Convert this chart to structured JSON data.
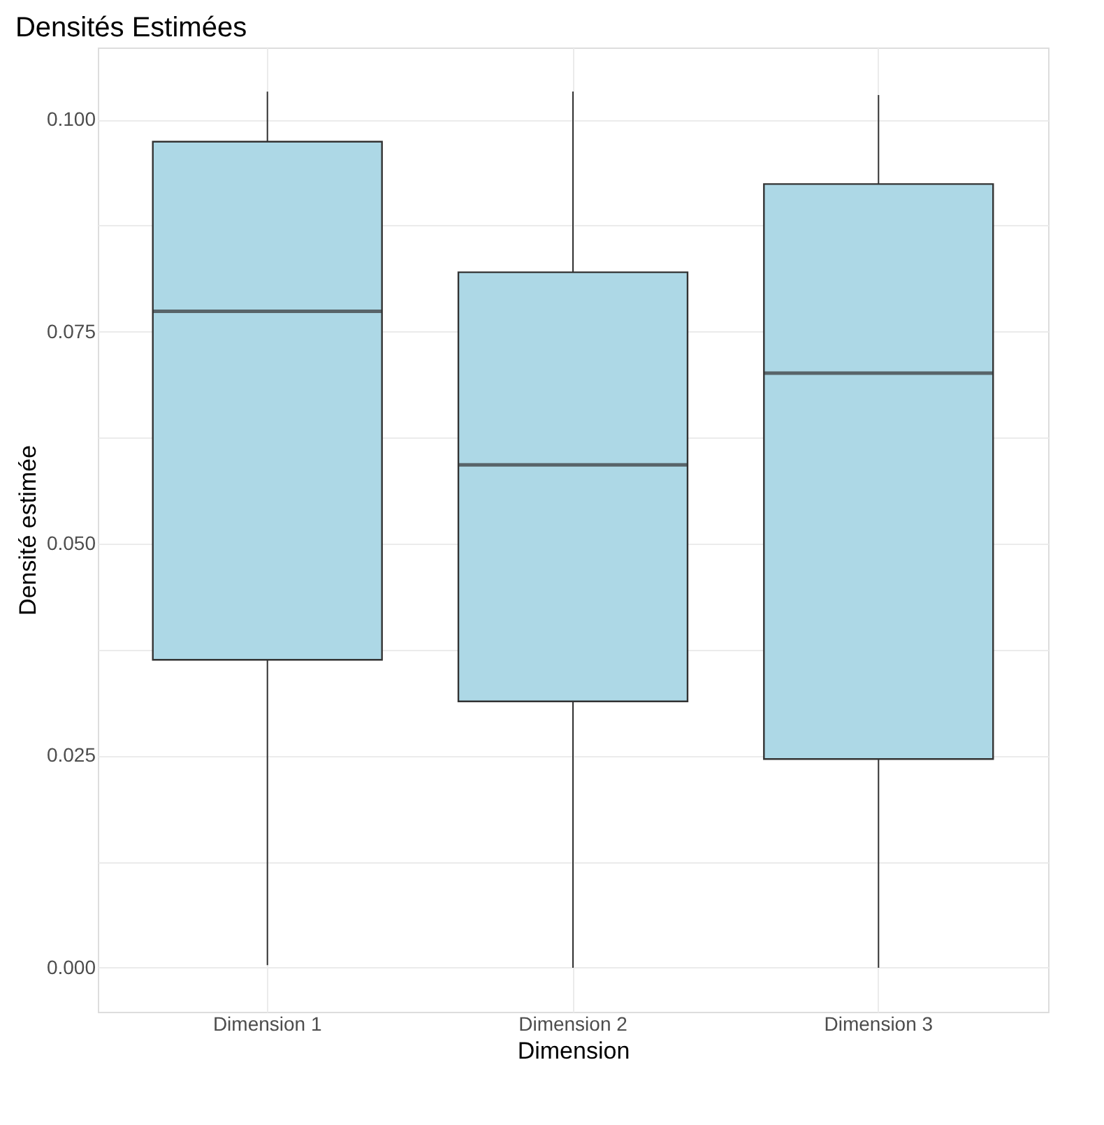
{
  "chart_data": {
    "type": "box",
    "title": "Densités Estimées",
    "xlabel": "Dimension",
    "ylabel": "Densité estimée",
    "categories": [
      "Dimension 1",
      "Dimension 2",
      "Dimension 3"
    ],
    "series": [
      {
        "color": "#add8e6",
        "boxes": [
          {
            "low": 0.0003,
            "q1": 0.0363,
            "median": 0.0774,
            "q3": 0.0974,
            "high": 0.1033
          },
          {
            "low": 0.0,
            "q1": 0.0314,
            "median": 0.0593,
            "q3": 0.082,
            "high": 0.1033
          },
          {
            "low": 0.0,
            "q1": 0.0246,
            "median": 0.0701,
            "q3": 0.0924,
            "high": 0.1029
          }
        ]
      }
    ],
    "ylim": [
      -0.0052,
      0.1085
    ],
    "yticks": [
      {
        "value": 0.0,
        "label": "0.000"
      },
      {
        "value": 0.0125,
        "label": null
      },
      {
        "value": 0.025,
        "label": "0.025"
      },
      {
        "value": 0.0375,
        "label": null
      },
      {
        "value": 0.05,
        "label": "0.050"
      },
      {
        "value": 0.0625,
        "label": null
      },
      {
        "value": 0.075,
        "label": "0.075"
      },
      {
        "value": 0.0875,
        "label": null
      },
      {
        "value": 0.1,
        "label": "0.100"
      }
    ],
    "grid": true
  }
}
